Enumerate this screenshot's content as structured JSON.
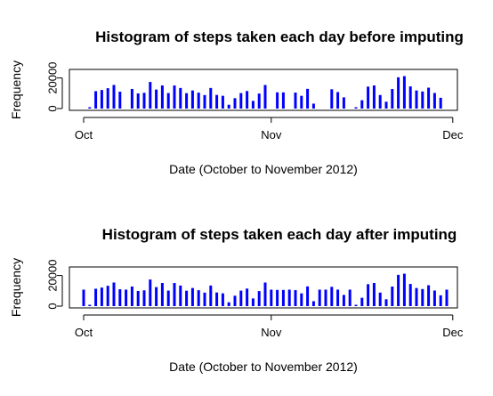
{
  "chart_data": [
    {
      "type": "bar",
      "title": "Histogram of steps taken each day before imputing",
      "xlabel": "Date (October to November 2012)",
      "ylabel": "Frequency",
      "x_ticks": [
        "Oct",
        "Nov",
        "Dec"
      ],
      "y_ticks": [
        "0",
        "20000"
      ],
      "ylim": [
        0,
        25000
      ],
      "grid": false,
      "color": "#0000ff",
      "categories": [
        "2012-10-01",
        "2012-10-02",
        "2012-10-03",
        "2012-10-04",
        "2012-10-05",
        "2012-10-06",
        "2012-10-07",
        "2012-10-08",
        "2012-10-09",
        "2012-10-10",
        "2012-10-11",
        "2012-10-12",
        "2012-10-13",
        "2012-10-14",
        "2012-10-15",
        "2012-10-16",
        "2012-10-17",
        "2012-10-18",
        "2012-10-19",
        "2012-10-20",
        "2012-10-21",
        "2012-10-22",
        "2012-10-23",
        "2012-10-24",
        "2012-10-25",
        "2012-10-26",
        "2012-10-27",
        "2012-10-28",
        "2012-10-29",
        "2012-10-30",
        "2012-10-31",
        "2012-11-01",
        "2012-11-02",
        "2012-11-03",
        "2012-11-04",
        "2012-11-05",
        "2012-11-06",
        "2012-11-07",
        "2012-11-08",
        "2012-11-09",
        "2012-11-10",
        "2012-11-11",
        "2012-11-12",
        "2012-11-13",
        "2012-11-14",
        "2012-11-15",
        "2012-11-16",
        "2012-11-17",
        "2012-11-18",
        "2012-11-19",
        "2012-11-20",
        "2012-11-21",
        "2012-11-22",
        "2012-11-23",
        "2012-11-24",
        "2012-11-25",
        "2012-11-26",
        "2012-11-27",
        "2012-11-28",
        "2012-11-29",
        "2012-11-30"
      ],
      "values": [
        0,
        126,
        11352,
        12116,
        13294,
        15420,
        11015,
        0,
        12811,
        9900,
        10304,
        17382,
        12426,
        15098,
        10139,
        15084,
        13452,
        10056,
        11829,
        10395,
        8821,
        13460,
        8918,
        8355,
        2492,
        6778,
        10119,
        11458,
        5018,
        9819,
        15414,
        0,
        10600,
        10571,
        0,
        10439,
        8334,
        12883,
        3219,
        0,
        0,
        12608,
        10765,
        7336,
        0,
        41,
        5441,
        14339,
        15110,
        8841,
        4472,
        12787,
        20427,
        21194,
        14478,
        11834,
        11162,
        13646,
        10183,
        7047,
        0
      ]
    },
    {
      "type": "bar",
      "title": "Histogram of steps taken each day after imputing",
      "xlabel": "Date (October to November 2012)",
      "ylabel": "Frequency",
      "x_ticks": [
        "Oct",
        "Nov",
        "Dec"
      ],
      "y_ticks": [
        "0",
        "20000"
      ],
      "ylim": [
        0,
        25000
      ],
      "grid": false,
      "color": "#0000ff",
      "categories": [
        "2012-10-01",
        "2012-10-02",
        "2012-10-03",
        "2012-10-04",
        "2012-10-05",
        "2012-10-06",
        "2012-10-07",
        "2012-10-08",
        "2012-10-09",
        "2012-10-10",
        "2012-10-11",
        "2012-10-12",
        "2012-10-13",
        "2012-10-14",
        "2012-10-15",
        "2012-10-16",
        "2012-10-17",
        "2012-10-18",
        "2012-10-19",
        "2012-10-20",
        "2012-10-21",
        "2012-10-22",
        "2012-10-23",
        "2012-10-24",
        "2012-10-25",
        "2012-10-26",
        "2012-10-27",
        "2012-10-28",
        "2012-10-29",
        "2012-10-30",
        "2012-10-31",
        "2012-11-01",
        "2012-11-02",
        "2012-11-03",
        "2012-11-04",
        "2012-11-05",
        "2012-11-06",
        "2012-11-07",
        "2012-11-08",
        "2012-11-09",
        "2012-11-10",
        "2012-11-11",
        "2012-11-12",
        "2012-11-13",
        "2012-11-14",
        "2012-11-15",
        "2012-11-16",
        "2012-11-17",
        "2012-11-18",
        "2012-11-19",
        "2012-11-20",
        "2012-11-21",
        "2012-11-22",
        "2012-11-23",
        "2012-11-24",
        "2012-11-25",
        "2012-11-26",
        "2012-11-27",
        "2012-11-28",
        "2012-11-29",
        "2012-11-30"
      ],
      "values": [
        10766,
        126,
        11352,
        12116,
        13294,
        15420,
        11015,
        10766,
        12811,
        9900,
        10304,
        17382,
        12426,
        15098,
        10139,
        15084,
        13452,
        10056,
        11829,
        10395,
        8821,
        13460,
        8918,
        8355,
        2492,
        6778,
        10119,
        11458,
        5018,
        9819,
        15414,
        10766,
        10600,
        10571,
        10766,
        10439,
        8334,
        12883,
        3219,
        10766,
        10766,
        12608,
        10765,
        7336,
        10766,
        41,
        5441,
        14339,
        15110,
        8841,
        4472,
        12787,
        20427,
        21194,
        14478,
        11834,
        11162,
        13646,
        10183,
        7047,
        10766
      ]
    }
  ]
}
